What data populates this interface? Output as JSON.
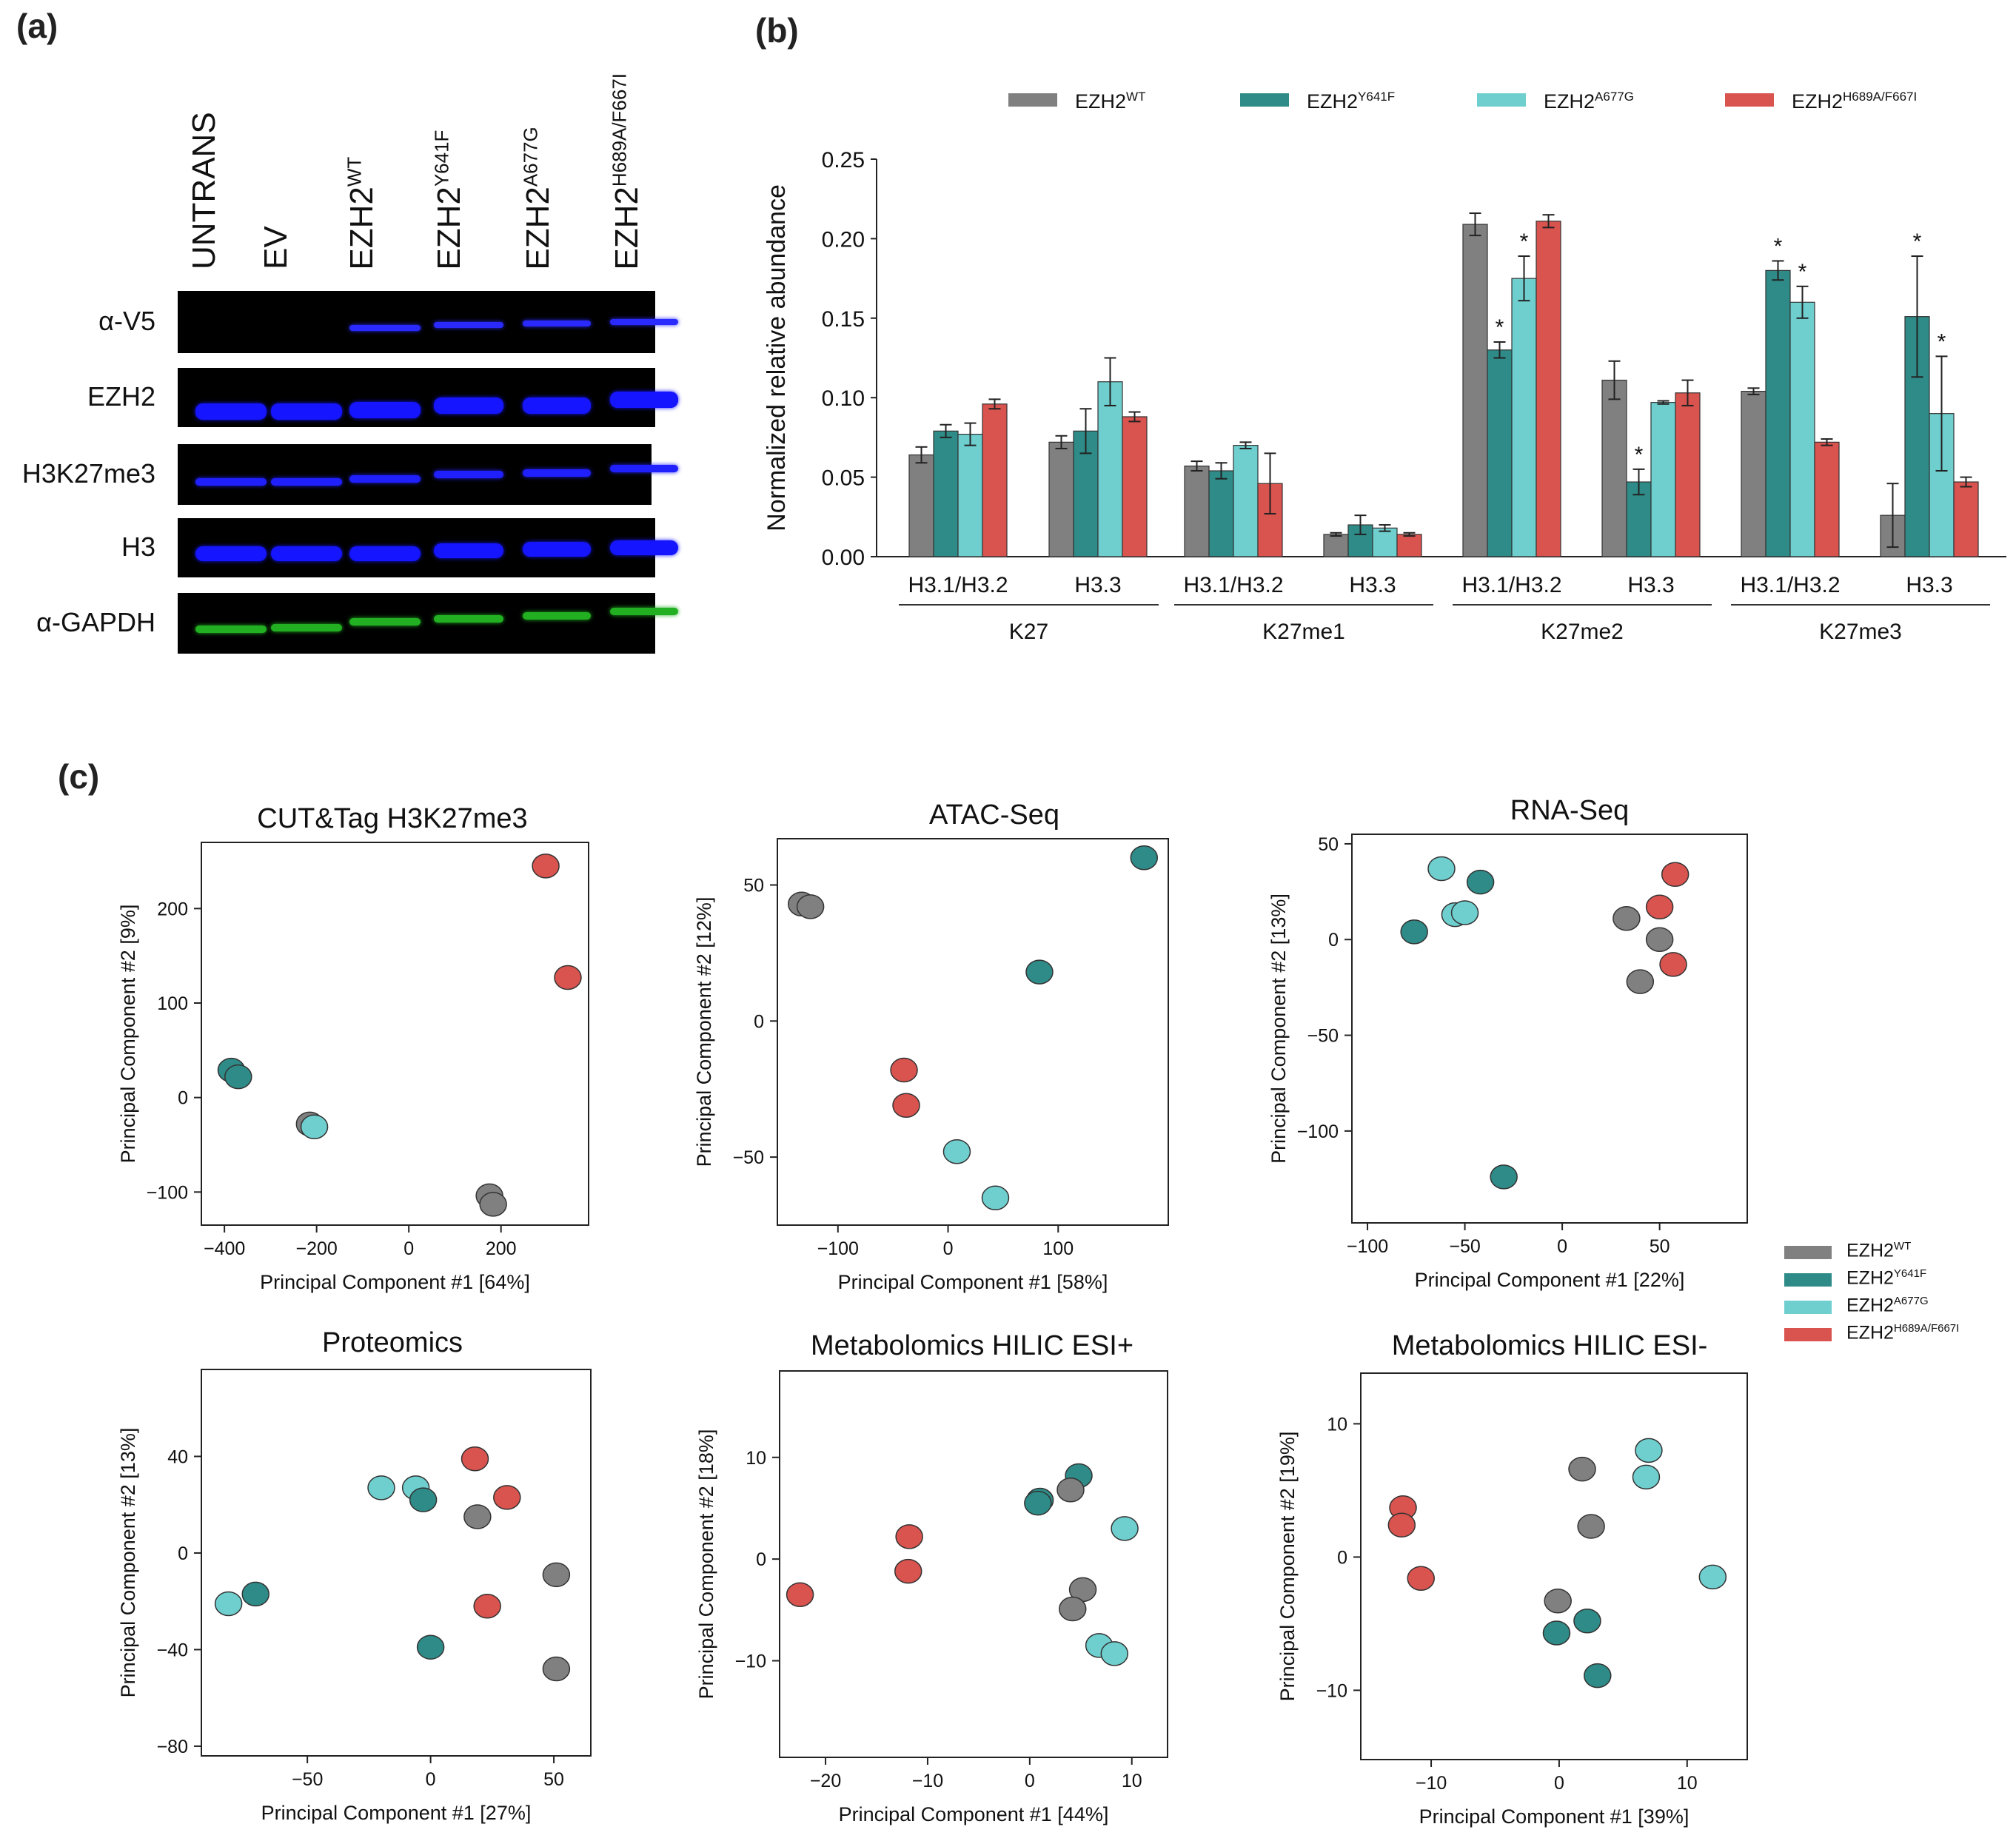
{
  "panels": {
    "a": "(a)",
    "b": "(b)",
    "c": "(c)"
  },
  "colors": {
    "wt": "#808080",
    "y641f": "#2e8b87",
    "a677g": "#6fcfcf",
    "h689a": "#d9534f"
  },
  "series_labels": {
    "wt": {
      "base": "EZH2",
      "sup": "WT"
    },
    "y641f": {
      "base": "EZH2",
      "sup": "Y641F"
    },
    "a677g": {
      "base": "EZH2",
      "sup": "A677G"
    },
    "h689a": {
      "base": "EZH2",
      "sup": "H689A/F667I"
    }
  },
  "western_blot": {
    "lanes": [
      {
        "base": "UNTRANS",
        "sup": ""
      },
      {
        "base": "EV",
        "sup": ""
      },
      {
        "base": "EZH2",
        "sup": "WT"
      },
      {
        "base": "EZH2",
        "sup": "Y641F"
      },
      {
        "base": "EZH2",
        "sup": "A677G"
      },
      {
        "base": "EZH2",
        "sup": "H689A/F667I"
      }
    ],
    "rows": [
      {
        "label": "α-V5",
        "band_color": "#2a2aff",
        "bands_present": [
          false,
          false,
          true,
          true,
          true,
          true
        ]
      },
      {
        "label": "EZH2",
        "band_color": "#1515ff",
        "bands_present": [
          true,
          true,
          true,
          true,
          true,
          true
        ]
      },
      {
        "label": "H3K27me3",
        "band_color": "#2020ff",
        "bands_present": [
          true,
          true,
          true,
          true,
          true,
          true
        ]
      },
      {
        "label": "H3",
        "band_color": "#1515ff",
        "bands_present": [
          true,
          true,
          true,
          true,
          true,
          true
        ]
      },
      {
        "label": "α-GAPDH",
        "band_color": "#22b022",
        "bands_present": [
          true,
          true,
          true,
          true,
          true,
          true
        ]
      }
    ]
  },
  "chart_data": [
    {
      "id": "b",
      "type": "bar",
      "ylabel": "Normalized relative abundance",
      "ylim": [
        0,
        0.25
      ],
      "yticks": [
        "0.00",
        "0.05",
        "0.10",
        "0.15",
        "0.20",
        "0.25"
      ],
      "legend_position": "top",
      "categories": [
        "H3.1/H3.2",
        "H3.3",
        "H3.1/H3.2",
        "H3.3",
        "H3.1/H3.2",
        "H3.3",
        "H3.1/H3.2",
        "H3.3"
      ],
      "groups": [
        {
          "label": "K27",
          "span": [
            0,
            1
          ]
        },
        {
          "label": "K27me1",
          "span": [
            2,
            3
          ]
        },
        {
          "label": "K27me2",
          "span": [
            4,
            5
          ]
        },
        {
          "label": "K27me3",
          "span": [
            6,
            7
          ]
        }
      ],
      "series": [
        {
          "key": "wt",
          "values": [
            0.064,
            0.072,
            0.057,
            0.014,
            0.209,
            0.111,
            0.104,
            0.026
          ],
          "errors": [
            0.005,
            0.004,
            0.003,
            0.001,
            0.007,
            0.012,
            0.002,
            0.02
          ],
          "stars": [
            false,
            false,
            false,
            false,
            false,
            false,
            false,
            false
          ]
        },
        {
          "key": "y641f",
          "values": [
            0.079,
            0.079,
            0.054,
            0.02,
            0.13,
            0.047,
            0.18,
            0.151
          ],
          "errors": [
            0.004,
            0.014,
            0.005,
            0.006,
            0.005,
            0.008,
            0.006,
            0.038
          ],
          "stars": [
            false,
            false,
            false,
            false,
            true,
            true,
            true,
            true
          ]
        },
        {
          "key": "a677g",
          "values": [
            0.077,
            0.11,
            0.07,
            0.018,
            0.175,
            0.097,
            0.16,
            0.09
          ],
          "errors": [
            0.007,
            0.015,
            0.002,
            0.002,
            0.014,
            0.001,
            0.01,
            0.036
          ],
          "stars": [
            false,
            false,
            false,
            false,
            true,
            false,
            true,
            true
          ]
        },
        {
          "key": "h689a",
          "values": [
            0.096,
            0.088,
            0.046,
            0.014,
            0.211,
            0.103,
            0.072,
            0.047
          ],
          "errors": [
            0.003,
            0.003,
            0.019,
            0.001,
            0.004,
            0.008,
            0.002,
            0.003
          ],
          "stars": [
            false,
            false,
            false,
            false,
            false,
            false,
            false,
            false
          ]
        }
      ]
    },
    {
      "id": "c1",
      "type": "scatter",
      "title": "CUT&Tag H3K27me3",
      "xlabel": "Principal Component #1 [64%]",
      "ylabel": "Principal Component #2 [9%]",
      "xlim": [
        -450,
        390
      ],
      "ylim": [
        -135,
        270
      ],
      "xticks": [
        -400,
        -200,
        0,
        200
      ],
      "yticks": [
        -100,
        0,
        100,
        200
      ],
      "points": [
        {
          "s": "h689a",
          "x": 297,
          "y": 245
        },
        {
          "s": "h689a",
          "x": 345,
          "y": 127
        },
        {
          "s": "y641f",
          "x": -385,
          "y": 29
        },
        {
          "s": "y641f",
          "x": -370,
          "y": 22
        },
        {
          "s": "wt",
          "x": -215,
          "y": -28
        },
        {
          "s": "a677g",
          "x": -205,
          "y": -31
        },
        {
          "s": "wt",
          "x": 175,
          "y": -104
        },
        {
          "s": "wt",
          "x": 183,
          "y": -113
        }
      ]
    },
    {
      "id": "c2",
      "type": "scatter",
      "title": "ATAC-Seq",
      "xlabel": "Principal Component #1 [58%]",
      "ylabel": "Principal Component #2 [12%]",
      "xlim": [
        -155,
        200
      ],
      "ylim": [
        -75,
        67
      ],
      "xticks": [
        -100,
        0,
        100
      ],
      "yticks": [
        -50,
        0,
        50
      ],
      "points": [
        {
          "s": "y641f",
          "x": 178,
          "y": 60
        },
        {
          "s": "wt",
          "x": -133,
          "y": 43
        },
        {
          "s": "wt",
          "x": -125,
          "y": 42
        },
        {
          "s": "y641f",
          "x": 83,
          "y": 18
        },
        {
          "s": "h689a",
          "x": -40,
          "y": -18
        },
        {
          "s": "h689a",
          "x": -38,
          "y": -31
        },
        {
          "s": "a677g",
          "x": 8,
          "y": -48
        },
        {
          "s": "a677g",
          "x": 43,
          "y": -65
        }
      ]
    },
    {
      "id": "c3",
      "type": "scatter",
      "title": "RNA-Seq",
      "xlabel": "Principal Component #1 [22%]",
      "ylabel": "Principal Component #2 [13%]",
      "xlim": [
        -108,
        95
      ],
      "ylim": [
        -148,
        55
      ],
      "xticks": [
        -100,
        -50,
        0,
        50
      ],
      "yticks": [
        -100,
        -50,
        0,
        50
      ],
      "points": [
        {
          "s": "a677g",
          "x": -62,
          "y": 37
        },
        {
          "s": "y641f",
          "x": -42,
          "y": 30
        },
        {
          "s": "y641f",
          "x": -76,
          "y": 4
        },
        {
          "s": "a677g",
          "x": -55,
          "y": 13
        },
        {
          "s": "a677g",
          "x": -50,
          "y": 14
        },
        {
          "s": "h689a",
          "x": 58,
          "y": 34
        },
        {
          "s": "h689a",
          "x": 50,
          "y": 17
        },
        {
          "s": "wt",
          "x": 33,
          "y": 11
        },
        {
          "s": "wt",
          "x": 50,
          "y": 0
        },
        {
          "s": "wt",
          "x": 40,
          "y": -22
        },
        {
          "s": "h689a",
          "x": 57,
          "y": -13
        },
        {
          "s": "y641f",
          "x": -30,
          "y": -124
        }
      ]
    },
    {
      "id": "c4",
      "type": "scatter",
      "title": "Proteomics",
      "xlabel": "Principal Component #1 [27%]",
      "ylabel": "Principal Component #2 [13%]",
      "xlim": [
        -93,
        65
      ],
      "ylim": [
        -84,
        76
      ],
      "xticks": [
        -50,
        0,
        50
      ],
      "yticks": [
        -80,
        -40,
        0,
        40
      ],
      "points": [
        {
          "s": "h689a",
          "x": 18,
          "y": 39
        },
        {
          "s": "a677g",
          "x": -20,
          "y": 27
        },
        {
          "s": "a677g",
          "x": -6,
          "y": 27
        },
        {
          "s": "y641f",
          "x": -3,
          "y": 22
        },
        {
          "s": "h689a",
          "x": 31,
          "y": 23
        },
        {
          "s": "wt",
          "x": 19,
          "y": 15
        },
        {
          "s": "a677g",
          "x": -82,
          "y": -21
        },
        {
          "s": "y641f",
          "x": -71,
          "y": -17
        },
        {
          "s": "wt",
          "x": 51,
          "y": -9
        },
        {
          "s": "h689a",
          "x": 23,
          "y": -22
        },
        {
          "s": "y641f",
          "x": 0,
          "y": -39
        },
        {
          "s": "wt",
          "x": 51,
          "y": -48
        }
      ]
    },
    {
      "id": "c5",
      "type": "scatter",
      "title": "Metabolomics HILIC ESI+",
      "xlabel": "Principal Component #1 [44%]",
      "ylabel": "Principal Component #2 [18%]",
      "xlim": [
        -24.5,
        13.5
      ],
      "ylim": [
        -19.5,
        18.5
      ],
      "xticks": [
        -20,
        -10,
        0,
        10
      ],
      "yticks": [
        -10,
        0,
        10
      ],
      "points": [
        {
          "s": "y641f",
          "x": 4.8,
          "y": 8.2
        },
        {
          "s": "wt",
          "x": 4.0,
          "y": 6.8
        },
        {
          "s": "y641f",
          "x": 1.0,
          "y": 5.8
        },
        {
          "s": "y641f",
          "x": 0.8,
          "y": 5.5
        },
        {
          "s": "a677g",
          "x": 9.3,
          "y": 3.0
        },
        {
          "s": "h689a",
          "x": -11.8,
          "y": 2.2
        },
        {
          "s": "h689a",
          "x": -11.9,
          "y": -1.2
        },
        {
          "s": "h689a",
          "x": -22.5,
          "y": -3.5
        },
        {
          "s": "wt",
          "x": 5.2,
          "y": -3.0
        },
        {
          "s": "wt",
          "x": 4.2,
          "y": -4.9
        },
        {
          "s": "a677g",
          "x": 6.8,
          "y": -8.5
        },
        {
          "s": "a677g",
          "x": 8.3,
          "y": -9.3
        }
      ]
    },
    {
      "id": "c6",
      "type": "scatter",
      "title": "Metabolomics HILIC ESI-",
      "xlabel": "Principal Component #1 [39%]",
      "ylabel": "Principal Component #2 [19%]",
      "xlim": [
        -15.5,
        14.7
      ],
      "ylim": [
        -15.2,
        13.8
      ],
      "xticks": [
        -10,
        0,
        10
      ],
      "yticks": [
        -10,
        0,
        10
      ],
      "points": [
        {
          "s": "a677g",
          "x": 7.0,
          "y": 8.0
        },
        {
          "s": "wt",
          "x": 1.8,
          "y": 6.6
        },
        {
          "s": "a677g",
          "x": 6.8,
          "y": 6.0
        },
        {
          "s": "h689a",
          "x": -12.2,
          "y": 3.7
        },
        {
          "s": "h689a",
          "x": -12.3,
          "y": 2.4
        },
        {
          "s": "wt",
          "x": 2.5,
          "y": 2.3
        },
        {
          "s": "a677g",
          "x": 12.0,
          "y": -1.5
        },
        {
          "s": "h689a",
          "x": -10.8,
          "y": -1.6
        },
        {
          "s": "wt",
          "x": -0.1,
          "y": -3.3
        },
        {
          "s": "y641f",
          "x": 2.2,
          "y": -4.8
        },
        {
          "s": "y641f",
          "x": -0.2,
          "y": -5.7
        },
        {
          "s": "y641f",
          "x": 3.0,
          "y": -8.9
        }
      ]
    }
  ]
}
